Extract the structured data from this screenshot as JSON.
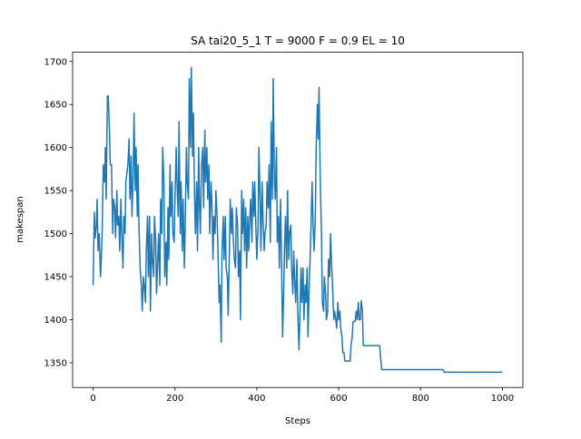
{
  "chart_data": {
    "type": "line",
    "title": "SA tai20_5_1 T = 9000 F = 0.9 EL = 10",
    "xlabel": "Steps",
    "ylabel": "makespan",
    "x": [
      0,
      3,
      5,
      8,
      10,
      12,
      15,
      18,
      20,
      22,
      25,
      28,
      30,
      32,
      35,
      37,
      40,
      42,
      45,
      48,
      50,
      53,
      55,
      58,
      60,
      63,
      65,
      68,
      70,
      73,
      75,
      78,
      80,
      85,
      88,
      90,
      93,
      95,
      98,
      100,
      103,
      105,
      108,
      110,
      112,
      115,
      118,
      120,
      123,
      125,
      128,
      130,
      133,
      135,
      138,
      140,
      143,
      145,
      148,
      150,
      153,
      155,
      158,
      160,
      163,
      165,
      168,
      170,
      173,
      175,
      178,
      180,
      183,
      185,
      188,
      190,
      193,
      195,
      198,
      200,
      203,
      205,
      208,
      210,
      213,
      215,
      218,
      220,
      223,
      225,
      228,
      230,
      233,
      235,
      238,
      240,
      243,
      245,
      248,
      250,
      253,
      255,
      258,
      260,
      262,
      265,
      268,
      270,
      273,
      275,
      278,
      280,
      283,
      285,
      288,
      290,
      293,
      295,
      298,
      300,
      303,
      305,
      308,
      310,
      313,
      315,
      318,
      320,
      323,
      325,
      328,
      330,
      333,
      335,
      338,
      340,
      343,
      345,
      348,
      350,
      353,
      355,
      358,
      360,
      363,
      365,
      368,
      370,
      373,
      375,
      378,
      380,
      383,
      385,
      388,
      390,
      393,
      395,
      398,
      400,
      403,
      405,
      408,
      410,
      413,
      415,
      418,
      420,
      423,
      425,
      428,
      430,
      433,
      435,
      438,
      440,
      443,
      445,
      448,
      450,
      453,
      455,
      458,
      460,
      463,
      465,
      468,
      470,
      473,
      475,
      478,
      480,
      483,
      485,
      488,
      490,
      493,
      495,
      498,
      500,
      503,
      505,
      508,
      510,
      513,
      515,
      518,
      520,
      523,
      525,
      528,
      530,
      533,
      535,
      538,
      540,
      543,
      545,
      548,
      550,
      552,
      555,
      558,
      560,
      563,
      565,
      568,
      570,
      573,
      575,
      578,
      580,
      583,
      585,
      588,
      590,
      593,
      595,
      598,
      600,
      603,
      605,
      608,
      610,
      613,
      615,
      625,
      628,
      630,
      633,
      635,
      640,
      643,
      645,
      648,
      650,
      653,
      655,
      658,
      660,
      700,
      705,
      855,
      858,
      1000
    ],
    "series": [
      {
        "color": "#1f77b4",
        "values": [
          1440,
          1525,
          1495,
          1510,
          1540,
          1480,
          1500,
          1450,
          1470,
          1500,
          1580,
          1560,
          1600,
          1540,
          1660,
          1660,
          1620,
          1580,
          1580,
          1500,
          1540,
          1530,
          1495,
          1550,
          1510,
          1520,
          1480,
          1540,
          1500,
          1460,
          1520,
          1500,
          1560,
          1580,
          1610,
          1540,
          1590,
          1520,
          1570,
          1640,
          1550,
          1600,
          1520,
          1580,
          1510,
          1460,
          1440,
          1410,
          1450,
          1440,
          1420,
          1480,
          1520,
          1450,
          1520,
          1410,
          1500,
          1470,
          1450,
          1520,
          1490,
          1430,
          1470,
          1500,
          1440,
          1540,
          1500,
          1600,
          1560,
          1450,
          1490,
          1440,
          1530,
          1470,
          1580,
          1520,
          1560,
          1500,
          1490,
          1540,
          1600,
          1560,
          1520,
          1630,
          1500,
          1560,
          1480,
          1540,
          1460,
          1510,
          1600,
          1560,
          1540,
          1680,
          1600,
          1693,
          1590,
          1640,
          1540,
          1500,
          1560,
          1480,
          1600,
          1530,
          1500,
          1580,
          1600,
          1530,
          1620,
          1560,
          1600,
          1540,
          1580,
          1500,
          1560,
          1540,
          1470,
          1520,
          1500,
          1550,
          1520,
          1480,
          1420,
          1440,
          1374,
          1480,
          1520,
          1470,
          1520,
          1460,
          1450,
          1405,
          1480,
          1540,
          1500,
          1530,
          1490,
          1470,
          1460,
          1530,
          1510,
          1450,
          1480,
          1400,
          1550,
          1500,
          1540,
          1480,
          1530,
          1460,
          1520,
          1480,
          1520,
          1540,
          1490,
          1560,
          1520,
          1560,
          1500,
          1470,
          1510,
          1600,
          1540,
          1480,
          1560,
          1520,
          1480,
          1500,
          1510,
          1560,
          1530,
          1580,
          1490,
          1630,
          1540,
          1680,
          1560,
          1540,
          1600,
          1490,
          1520,
          1460,
          1540,
          1480,
          1380,
          1420,
          1490,
          1520,
          1460,
          1550,
          1470,
          1500,
          1510,
          1460,
          1430,
          1480,
          1440,
          1420,
          1470,
          1410,
          1365,
          1400,
          1460,
          1420,
          1460,
          1400,
          1440,
          1420,
          1460,
          1380,
          1440,
          1470,
          1520,
          1560,
          1500,
          1480,
          1520,
          1600,
          1650,
          1610,
          1670,
          1560,
          1500,
          1420,
          1410,
          1450,
          1430,
          1400,
          1410,
          1470,
          1450,
          1500,
          1460,
          1440,
          1400,
          1410,
          1400,
          1390,
          1420,
          1400,
          1410,
          1390,
          1380,
          1362,
          1362,
          1352,
          1352,
          1352,
          1370,
          1380,
          1398,
          1398,
          1410,
          1400,
          1420,
          1400,
          1400,
          1422,
          1410,
          1370,
          1370,
          1342,
          1342,
          1339,
          1339
        ]
      }
    ],
    "xlim": [
      -50,
      1050
    ],
    "ylim": [
      1321.3,
      1710.7
    ],
    "xticks": [
      0,
      200,
      400,
      600,
      800,
      1000
    ],
    "yticks": [
      1350,
      1400,
      1450,
      1500,
      1550,
      1600,
      1650,
      1700
    ]
  }
}
